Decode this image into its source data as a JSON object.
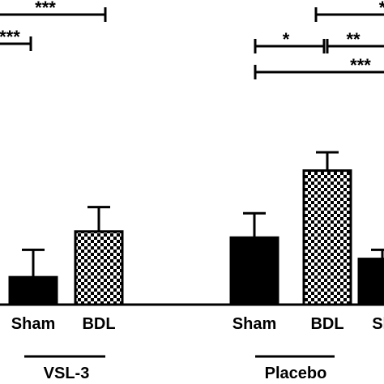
{
  "chart_data": {
    "type": "bar",
    "ylim": [
      0,
      1
    ],
    "groups": [
      {
        "name": "VSL-3",
        "bars": [
          {
            "label": "Sham",
            "value": 0.09,
            "error": 0.09,
            "pattern": "solid"
          },
          {
            "label": "BDL",
            "value": 0.24,
            "error": 0.08,
            "pattern": "checker"
          }
        ]
      },
      {
        "name": "Placebo",
        "bars": [
          {
            "label": "Sham",
            "value": 0.22,
            "error": 0.08,
            "pattern": "solid"
          },
          {
            "label": "BDL",
            "value": 0.44,
            "error": 0.06,
            "pattern": "checker"
          },
          {
            "label": "Sh",
            "value": 0.15,
            "error": 0.03,
            "pattern": "solid"
          }
        ]
      }
    ],
    "significance": [
      "***",
      "***",
      "*",
      "**",
      "***",
      "*"
    ],
    "colors": {
      "bar": "#000000",
      "axis": "#000000",
      "background": "#ffffff"
    }
  }
}
